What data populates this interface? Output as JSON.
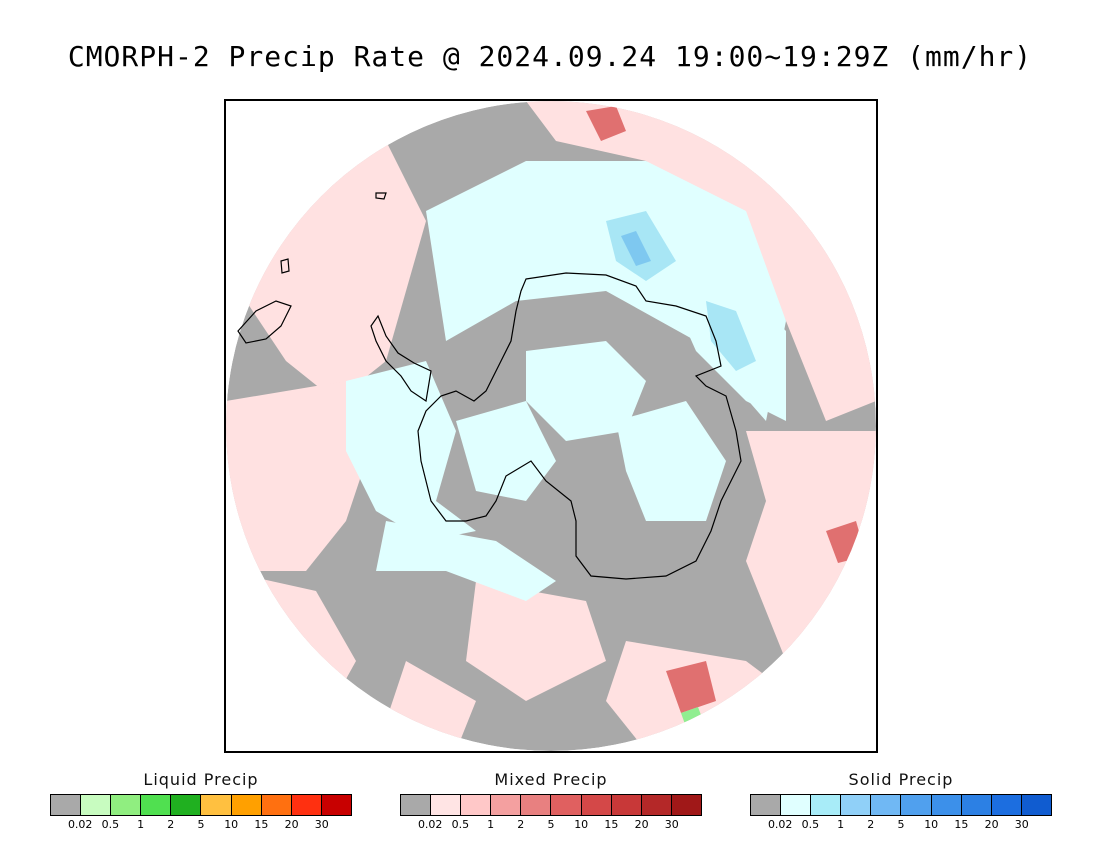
{
  "title": "CMORPH-2 Precip Rate @ 2024.09.24 19:00~19:29Z (mm/hr)",
  "map": {
    "icon": "south-polar-stereographic-map",
    "colors": {
      "background": "#a9a9a9",
      "mixed_light": "#ffe1e1",
      "mixed_mid": "#f7c4c4",
      "mixed_heavy": "#e07070",
      "solid_light": "#e0ffff",
      "solid_mid": "#a8e6f5",
      "solid_heavy": "#7ec8f0",
      "liquid_light": "#90ee90",
      "coastline": "#000000"
    }
  },
  "legends": [
    {
      "title": "Liquid Precip",
      "ticks": [
        "0.02",
        "0.5",
        "1",
        "2",
        "5",
        "10",
        "15",
        "20",
        "30"
      ],
      "colors": [
        "#a9a9a9",
        "#c8fcc0",
        "#90ee80",
        "#50e050",
        "#20b020",
        "#ffc040",
        "#ffa000",
        "#ff7010",
        "#ff3010",
        "#c80000"
      ]
    },
    {
      "title": "Mixed Precip",
      "ticks": [
        "0.02",
        "0.5",
        "1",
        "2",
        "5",
        "10",
        "15",
        "20",
        "30"
      ],
      "colors": [
        "#a9a9a9",
        "#ffe4e4",
        "#ffc8c8",
        "#f4a0a0",
        "#e88080",
        "#e06060",
        "#d44848",
        "#c83838",
        "#b42828",
        "#a01818"
      ]
    },
    {
      "title": "Solid Precip",
      "ticks": [
        "0.02",
        "0.5",
        "1",
        "2",
        "5",
        "10",
        "15",
        "20",
        "30"
      ],
      "colors": [
        "#a9a9a9",
        "#e0ffff",
        "#a8ecf8",
        "#90d0f8",
        "#70b8f4",
        "#50a0ee",
        "#3c90ea",
        "#2c80e4",
        "#1c6ee0",
        "#105cd0"
      ]
    }
  ]
}
